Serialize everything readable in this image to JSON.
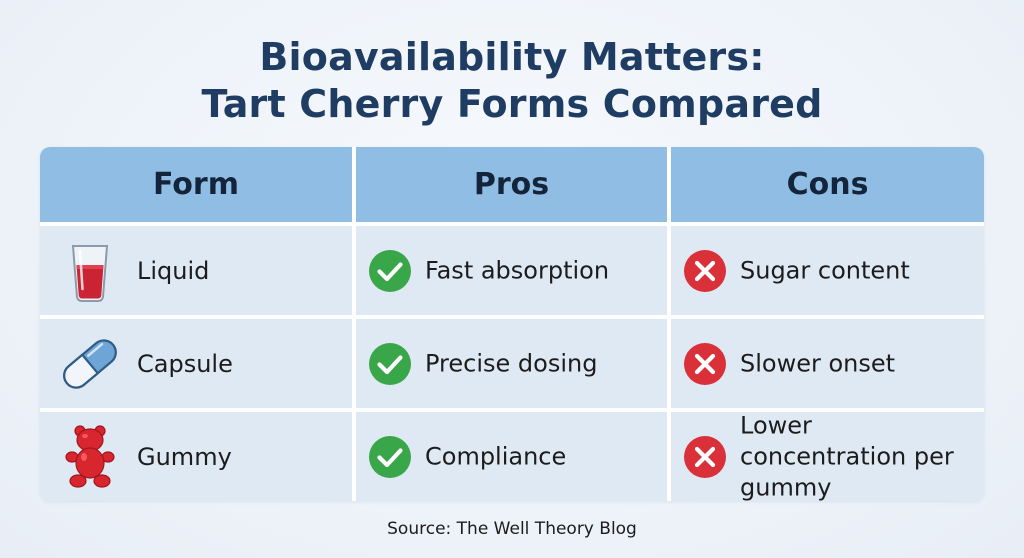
{
  "title": {
    "line1": "Bioavailability Matters:",
    "line2": "Tart Cherry Forms Compared"
  },
  "table": {
    "headers": [
      "Form",
      "Pros",
      "Cons"
    ],
    "rows": [
      {
        "form": "Liquid",
        "form_icon": "glass-of-juice-icon",
        "pro": "Fast absorption",
        "con": "Sugar content"
      },
      {
        "form": "Capsule",
        "form_icon": "capsule-icon",
        "pro": "Precise dosing",
        "con": "Slower onset"
      },
      {
        "form": "Gummy",
        "form_icon": "gummy-bear-icon",
        "pro": "Compliance",
        "con": "Lower concentration per gummy"
      }
    ]
  },
  "icons": {
    "pro": "green-check-circle-icon",
    "con": "red-x-circle-icon"
  },
  "colors": {
    "title": "#1f3d62",
    "header_bg": "#8fbde4",
    "row_bg": "#dfe9f3",
    "check_green": "#3aa64a",
    "cross_red": "#d9303a"
  },
  "source": "Source: The Well Theory Blog"
}
